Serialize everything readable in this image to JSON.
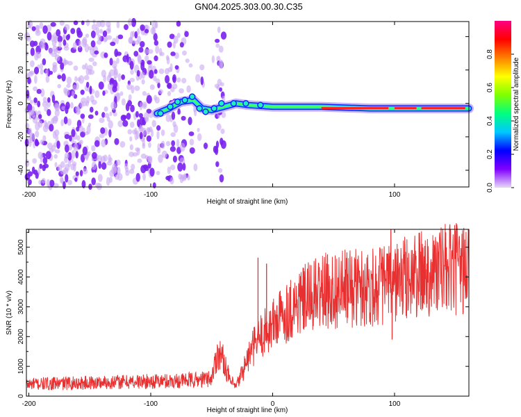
{
  "title": "GN04.2025.303.00.30.C35",
  "chart_data": [
    {
      "type": "heatmap",
      "name": "spectrogram",
      "xlabel": "Height of straight line (km)",
      "ylabel": "Frequency (Hz)",
      "xlim": [
        -202,
        161
      ],
      "ylim": [
        -50,
        49
      ],
      "xticks": [
        -200,
        -100,
        0,
        100
      ],
      "xtick_labels": [
        "-200",
        "-100",
        "",
        "100"
      ],
      "yticks": [
        -40,
        -20,
        0,
        20,
        40
      ],
      "ytick_labels": [
        "-40",
        "-20",
        "0",
        "20",
        "40"
      ],
      "colorbar": {
        "label": "Normalized spectral amplitude",
        "range": [
          0,
          1
        ],
        "ticks": [
          0.0,
          0.2,
          0.4,
          0.6,
          0.8
        ],
        "tick_labels": [
          "0.0",
          "0.2",
          "0.4",
          "0.6",
          "0.8"
        ],
        "colormap": [
          "#e8d8f8",
          "#8000ff",
          "#0000ff",
          "#00c8ff",
          "#00ff80",
          "#80ff00",
          "#ffff00",
          "#ff8000",
          "#ff0000",
          "#ff0080"
        ]
      },
      "noise_region": {
        "x_from": -202,
        "x_to": -40,
        "amplitude": 0.15
      },
      "signal_track": [
        {
          "x": -95,
          "y": -6
        },
        {
          "x": -85,
          "y": -3
        },
        {
          "x": -75,
          "y": 1
        },
        {
          "x": -65,
          "y": 2
        },
        {
          "x": -58,
          "y": -3
        },
        {
          "x": -50,
          "y": -4
        },
        {
          "x": -40,
          "y": -2
        },
        {
          "x": -30,
          "y": 0
        },
        {
          "x": -20,
          "y": -1
        },
        {
          "x": 0,
          "y": -2
        },
        {
          "x": 40,
          "y": -2
        },
        {
          "x": 80,
          "y": -3
        },
        {
          "x": 120,
          "y": -3
        },
        {
          "x": 161,
          "y": -3
        }
      ],
      "strong_segments": [
        {
          "x_from": 40,
          "x_to": 95
        },
        {
          "x_from": 100,
          "x_to": 118
        },
        {
          "x_from": 122,
          "x_to": 158
        }
      ]
    },
    {
      "type": "line",
      "name": "snr",
      "xlabel": "Height of straight line (km)",
      "ylabel": "SNR (10 * v/v)",
      "xlim": [
        -202,
        161
      ],
      "ylim": [
        0,
        5600
      ],
      "xticks": [
        -200,
        -100,
        0,
        100
      ],
      "xtick_labels": [
        "-200",
        "-100",
        "0",
        "100"
      ],
      "yticks": [
        0,
        1000,
        2000,
        3000,
        4000,
        5000
      ],
      "ytick_labels": [
        "0",
        "1000",
        "2000",
        "3000",
        "4000",
        "5000"
      ],
      "color": "#e83030",
      "series": [
        {
          "name": "SNR",
          "x": [
            -202,
            -180,
            -150,
            -120,
            -90,
            -60,
            -50,
            -45,
            -40,
            -35,
            -30,
            -25,
            -20,
            -15,
            -10,
            0,
            10,
            20,
            30,
            40,
            50,
            60,
            70,
            80,
            90,
            100,
            110,
            120,
            130,
            140,
            150,
            161
          ],
          "y": [
            400,
            420,
            450,
            480,
            500,
            550,
            600,
            1500,
            1200,
            500,
            300,
            800,
            1300,
            1700,
            2000,
            2400,
            2800,
            3100,
            3300,
            3500,
            3550,
            3600,
            3650,
            3700,
            3750,
            3850,
            3950,
            4050,
            4200,
            4250,
            4250,
            4300
          ]
        }
      ],
      "spikes": [
        {
          "x": -12,
          "y": 4650
        },
        {
          "x": -5,
          "y": 4450
        },
        {
          "x": 97,
          "y": 5600
        },
        {
          "x": 98,
          "y": 1900
        }
      ]
    }
  ]
}
